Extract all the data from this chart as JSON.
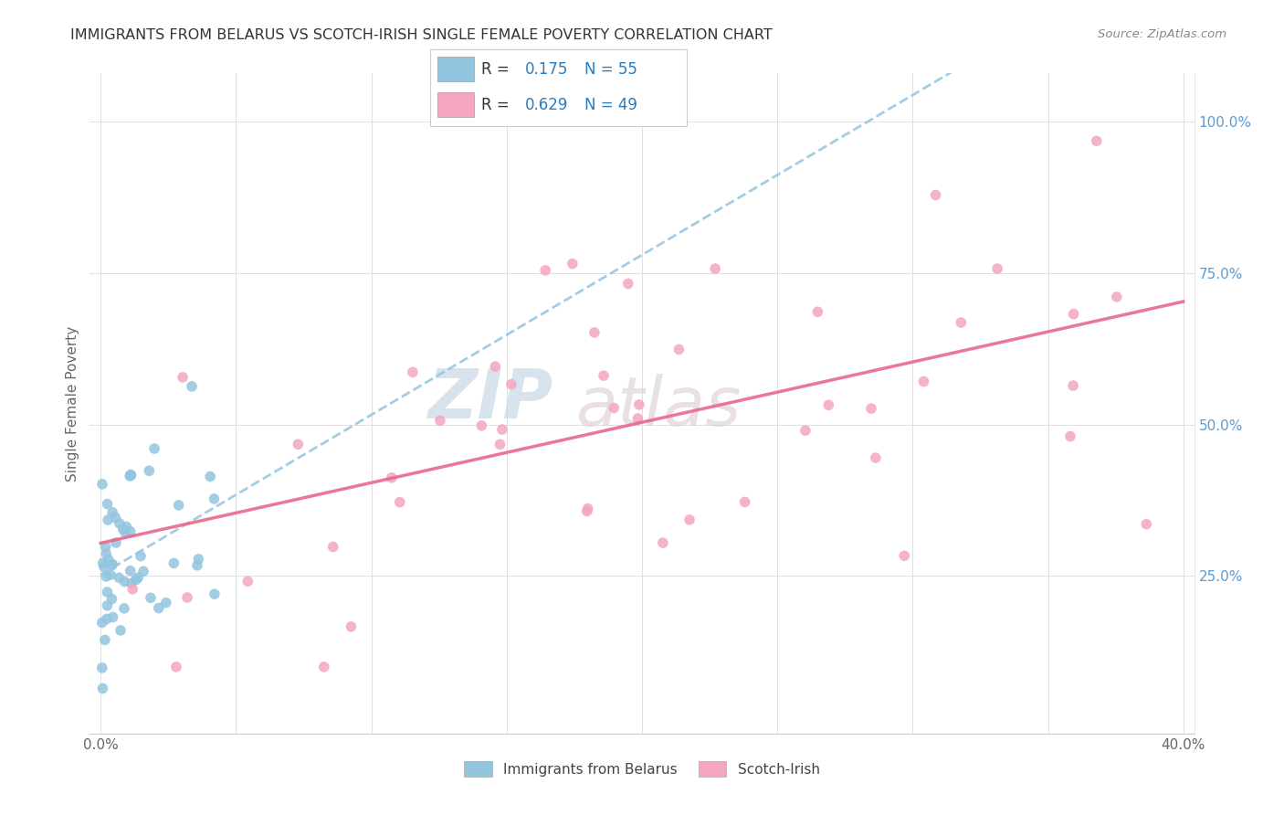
{
  "title": "IMMIGRANTS FROM BELARUS VS SCOTCH-IRISH SINGLE FEMALE POVERTY CORRELATION CHART",
  "source": "Source: ZipAtlas.com",
  "legend_label1": "Immigrants from Belarus",
  "legend_label2": "Scotch-Irish",
  "R1": 0.175,
  "N1": 55,
  "R2": 0.629,
  "N2": 49,
  "color_blue": "#92c5de",
  "color_pink": "#f4a6c0",
  "color_blue_line": "#92c5de",
  "color_pink_line": "#e8688a",
  "watermark_left": "ZIP",
  "watermark_right": "atlas",
  "ylabel": "Single Female Poverty",
  "xlim": [
    0.0,
    0.4
  ],
  "ylim": [
    0.0,
    1.05
  ],
  "yticks": [
    0.25,
    0.5,
    0.75,
    1.0
  ],
  "ytick_labels": [
    "25.0%",
    "50.0%",
    "75.0%",
    "100.0%"
  ],
  "xtick_left_label": "0.0%",
  "xtick_right_label": "40.0%",
  "blue_seed": 42,
  "pink_seed": 7
}
